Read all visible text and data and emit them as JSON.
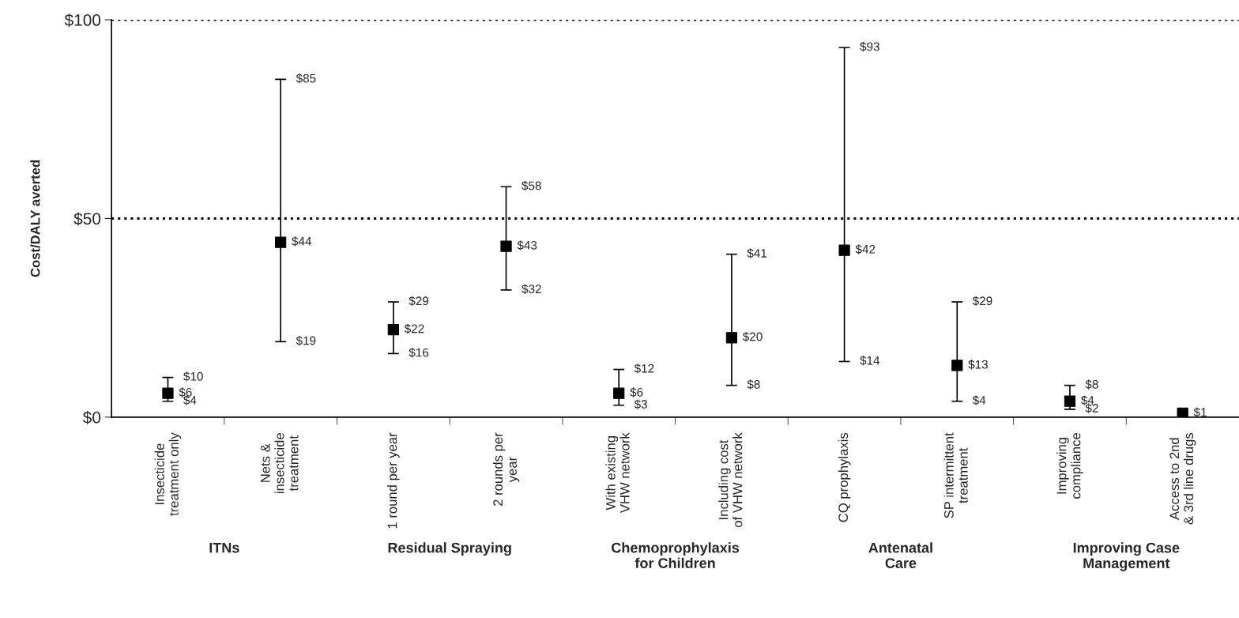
{
  "chart_data": {
    "type": "scatter",
    "ylabel": "Cost/DALY averted",
    "categories": [
      "Insecticide\ntreatment only",
      "Nets &\ninsecticide\ntreatment",
      "1 round per year",
      "2 rounds per\nyear",
      "With existing\nVHW network",
      "Including cost\nof VHW network",
      "CQ prophylaxis",
      "SP intermittent\ntreatment",
      "Improving\ncompliance",
      "Access to 2nd\n& 3rd line drugs"
    ],
    "series": [
      {
        "color": "#000000",
        "values": [
          6,
          44,
          22,
          43,
          6,
          20,
          42,
          13,
          4,
          1
        ],
        "errors": [
          [
            4,
            10
          ],
          [
            19,
            85
          ],
          [
            16,
            29
          ],
          [
            32,
            58
          ],
          [
            3,
            12
          ],
          [
            8,
            41
          ],
          [
            14,
            93
          ],
          [
            4,
            29
          ],
          [
            2,
            8
          ],
          null
        ],
        "value_labels": [
          "$6",
          "$44",
          "$22",
          "$43",
          "$6",
          "$20",
          "$42",
          "$13",
          "$4",
          "$1"
        ]
      }
    ],
    "marker": "square",
    "ylim": [
      0,
      100
    ],
    "yticks": [
      {
        "value": 0,
        "label": "$0"
      },
      {
        "value": 50,
        "label": "$50"
      },
      {
        "value": 100,
        "label": "$100"
      }
    ],
    "ref_lines": [
      {
        "axis": "y",
        "value": 50,
        "line_style": "dotted",
        "color": "#000000"
      },
      {
        "axis": "y",
        "value": 100,
        "line_style": "dotted",
        "color": "#000000"
      }
    ],
    "annotations": [
      "ITNs",
      "Residual Spraying",
      "Chemoprophylaxis\nfor Children",
      "Antenatal\nCare",
      "Improving Case\nManagement",
      {
        "text": "$10",
        "x": "Insecticide\ntreatment only",
        "y": 10
      },
      {
        "text": "$4",
        "x": "Insecticide\ntreatment only",
        "y": 4
      },
      {
        "text": "$85",
        "x": "Nets &\ninsecticide\ntreatment",
        "y": 85
      },
      {
        "text": "$19",
        "x": "Nets &\ninsecticide\ntreatment",
        "y": 19
      },
      {
        "text": "$29",
        "x": "1 round per year",
        "y": 29
      },
      {
        "text": "$16",
        "x": "1 round per year",
        "y": 16
      },
      {
        "text": "$58",
        "x": "2 rounds per\nyear",
        "y": 58
      },
      {
        "text": "$32",
        "x": "2 rounds per\nyear",
        "y": 32
      },
      {
        "text": "$12",
        "x": "With existing\nVHW network",
        "y": 12
      },
      {
        "text": "$3",
        "x": "With existing\nVHW network",
        "y": 3
      },
      {
        "text": "$41",
        "x": "Including cost\nof VHW network",
        "y": 41
      },
      {
        "text": "$8",
        "x": "Including cost\nof VHW network",
        "y": 8
      },
      {
        "text": "$93",
        "x": "CQ prophylaxis",
        "y": 93
      },
      {
        "text": "$14",
        "x": "CQ prophylaxis",
        "y": 14
      },
      {
        "text": "$29",
        "x": "SP intermittent\ntreatment",
        "y": 29
      },
      {
        "text": "$4",
        "x": "SP intermittent\ntreatment",
        "y": 4
      },
      {
        "text": "$8",
        "x": "Improving\ncompliance",
        "y": 8
      },
      {
        "text": "$2",
        "x": "Improving\ncompliance",
        "y": 2
      }
    ]
  }
}
